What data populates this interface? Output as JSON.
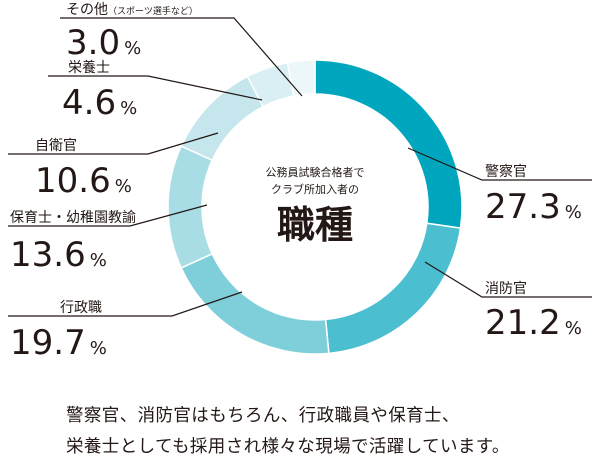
{
  "chart_data": {
    "type": "pie",
    "donut": true,
    "center_label_small": [
      "公務員試験合格者で",
      "クラブ所加入者の"
    ],
    "center_label_large": "職種",
    "unit": "%",
    "slices": [
      {
        "label": "警察官",
        "value": 27.3,
        "value_text": "27.3",
        "color": "#00a6be"
      },
      {
        "label": "消防官",
        "value": 21.2,
        "value_text": "21.2",
        "color": "#4bbfd0"
      },
      {
        "label": "行政職",
        "value": 19.7,
        "value_text": "19.7",
        "color": "#7fcfdb"
      },
      {
        "label": "保育士・幼稚園教諭",
        "value": 13.6,
        "value_text": "13.6",
        "color": "#a9dde6"
      },
      {
        "label": "自衛官",
        "value": 10.6,
        "value_text": "10.6",
        "color": "#c4e6ec"
      },
      {
        "label": "栄養士",
        "value": 4.6,
        "value_text": "4.6",
        "color": "#d9eff3"
      },
      {
        "label": "その他",
        "sublabel": "（スポーツ選手など）",
        "value": 3.0,
        "value_text": "3.0",
        "color": "#ecf7f9"
      }
    ]
  },
  "caption": {
    "line1": "警察官、消防官はもちろん、行政職員や保育士、",
    "line2": "栄養士としても採用され様々な現場で活躍しています。"
  }
}
